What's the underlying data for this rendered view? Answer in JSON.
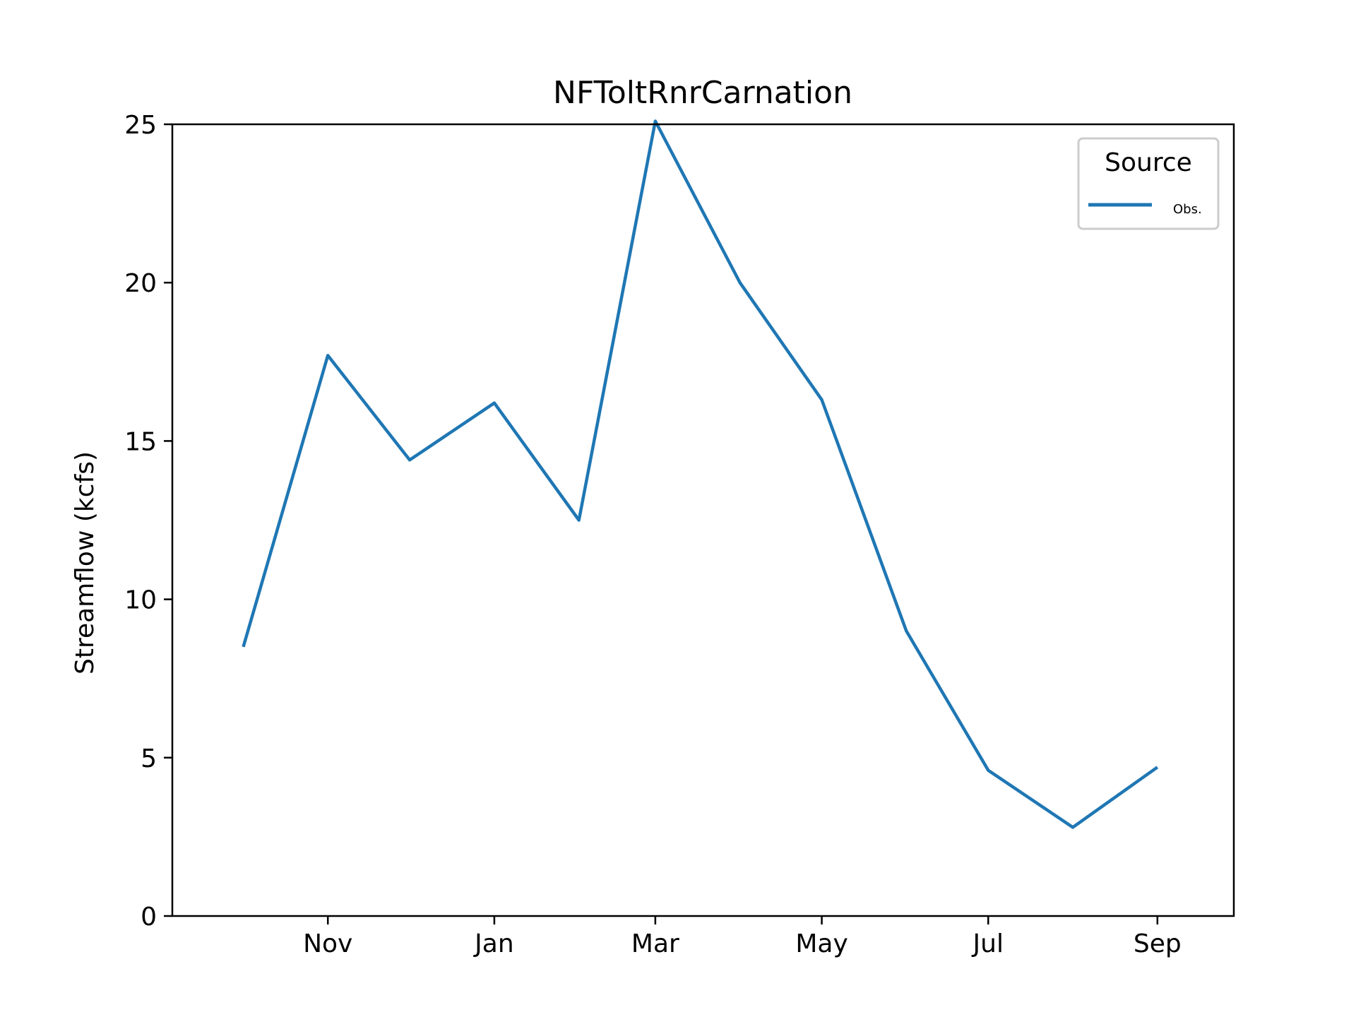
{
  "chart_data": {
    "type": "line",
    "title": "NFToltRnrCarnation",
    "xlabel": "",
    "ylabel": "Streamflow (kcfs)",
    "ylim": [
      0,
      25
    ],
    "yticks": [
      0,
      5,
      10,
      15,
      20,
      25
    ],
    "x": [
      "2020-10-01",
      "2020-11-01",
      "2020-12-01",
      "2021-01-01",
      "2021-02-01",
      "2021-03-01",
      "2021-04-01",
      "2021-05-01",
      "2021-06-01",
      "2021-07-01",
      "2021-08-01",
      "2021-09-01"
    ],
    "xticks": [
      {
        "date": "2020-11-01",
        "label": "Nov"
      },
      {
        "date": "2021-01-01",
        "label": "Jan"
      },
      {
        "date": "2021-03-01",
        "label": "Mar"
      },
      {
        "date": "2021-05-01",
        "label": "May"
      },
      {
        "date": "2021-07-01",
        "label": "Jul"
      },
      {
        "date": "2021-09-01",
        "label": "Sep"
      }
    ],
    "series": [
      {
        "name": "Obs.",
        "color": "#1f77b4",
        "values": [
          8.5,
          17.7,
          14.4,
          16.2,
          12.5,
          25.1,
          20.0,
          16.3,
          9.0,
          4.6,
          2.8,
          4.7
        ]
      }
    ],
    "grid": false,
    "legend": {
      "title": "Source",
      "placement": "top-right"
    }
  }
}
